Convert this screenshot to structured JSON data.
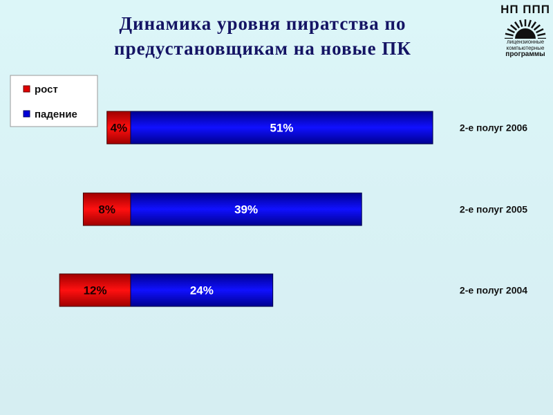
{
  "title": "Динамика уровня пиратства по предустановщикам на новые ПК",
  "logo": {
    "top": "НП ППП",
    "lines": [
      "лицензионные",
      "компьютерные",
      "программы"
    ]
  },
  "chart_data": {
    "type": "bar",
    "orientation": "horizontal",
    "stacked": true,
    "categories": [
      "2-е полуг 2006",
      "2-е полуг 2005",
      "2-е полуг 2004"
    ],
    "series": [
      {
        "name": "рост",
        "color": "#e00000",
        "values": [
          4,
          8,
          12
        ],
        "labels": [
          "4%",
          "8%",
          "12%"
        ]
      },
      {
        "name": "падение",
        "color": "#0000d8",
        "values": [
          51,
          39,
          24
        ],
        "labels": [
          "51%",
          "39%",
          "24%"
        ]
      }
    ],
    "legend_position": "top-left",
    "grid": false
  }
}
